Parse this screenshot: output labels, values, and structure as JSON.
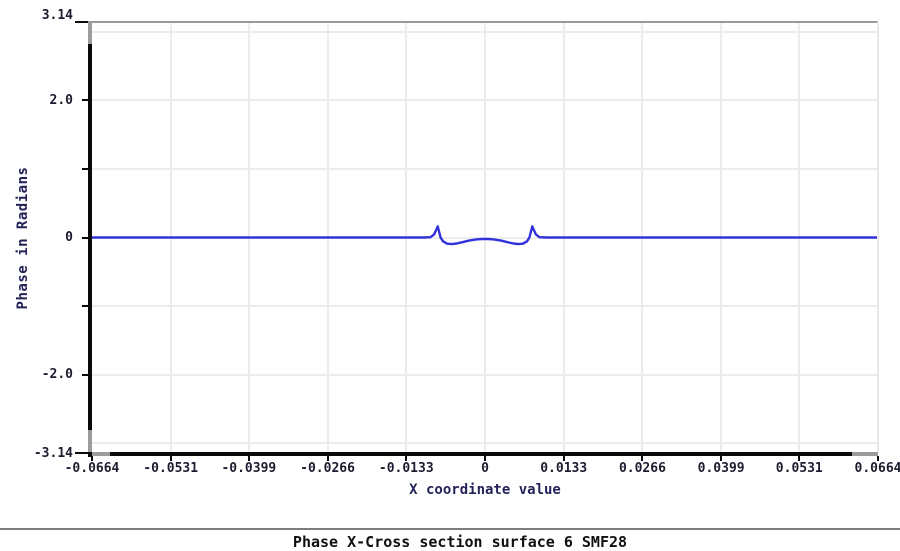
{
  "colors": {
    "background": "#ffffff",
    "line": "#3232dd",
    "grid": "#ececec",
    "axis": "#0a0a0a",
    "axis_shadow": "#9c9c9c",
    "border_top": "#9a9a9a",
    "border_right": "#e8e8e8",
    "tick_text": "#1c1c30",
    "axis_label_text": "#23235a",
    "title_text": "#101010",
    "footer_line": "#7d7d7d"
  },
  "chart_data": {
    "type": "line",
    "title": "Phase X-Cross section surface 6 SMF28",
    "xlabel": "X coordinate value",
    "ylabel": "Phase in Radians",
    "xlim": [
      -0.0664,
      0.0664
    ],
    "ylim": [
      -3.14,
      3.14
    ],
    "grid": true,
    "legend_position": "none",
    "x_ticks": [
      {
        "value": -0.0664,
        "label": "-0.0664"
      },
      {
        "value": -0.0531,
        "label": "-0.0531"
      },
      {
        "value": -0.0399,
        "label": "-0.0399"
      },
      {
        "value": -0.0266,
        "label": "-0.0266"
      },
      {
        "value": -0.0133,
        "label": "-0.0133"
      },
      {
        "value": 0,
        "label": "0"
      },
      {
        "value": 0.0133,
        "label": "0.0133"
      },
      {
        "value": 0.0266,
        "label": "0.0266"
      },
      {
        "value": 0.0399,
        "label": "0.0399"
      },
      {
        "value": 0.0531,
        "label": "0.0531"
      },
      {
        "value": 0.0664,
        "label": "0.0664"
      }
    ],
    "y_ticks": [
      {
        "value": 3.14,
        "label": "3.14",
        "long": true
      },
      {
        "value": 2,
        "label": "2.0",
        "long": false
      },
      {
        "value": 1,
        "label": "",
        "long": false
      },
      {
        "value": 0,
        "label": "0",
        "long": false
      },
      {
        "value": -1,
        "label": "",
        "long": false
      },
      {
        "value": -2,
        "label": "-2.0",
        "long": false
      },
      {
        "value": -3.14,
        "label": "-3.14",
        "long": true
      }
    ],
    "y_grid_values": [
      3,
      2,
      1,
      0,
      -1,
      -2,
      -3
    ],
    "series": [
      {
        "name": "Phase X-Cross section",
        "color": "#3232dd",
        "points": [
          [
            -0.0664,
            0
          ],
          [
            -0.03,
            0
          ],
          [
            -0.015,
            0
          ],
          [
            -0.0105,
            0
          ],
          [
            -0.0092,
            0.004
          ],
          [
            -0.0086,
            0.045
          ],
          [
            -0.0082,
            0.12
          ],
          [
            -0.008,
            0.162
          ],
          [
            -0.0078,
            0.1
          ],
          [
            -0.0075,
            0.0
          ],
          [
            -0.0071,
            -0.055
          ],
          [
            -0.0064,
            -0.09
          ],
          [
            -0.0056,
            -0.096
          ],
          [
            -0.0048,
            -0.088
          ],
          [
            -0.0038,
            -0.068
          ],
          [
            -0.0027,
            -0.045
          ],
          [
            -0.0015,
            -0.028
          ],
          [
            -0.0005,
            -0.022
          ],
          [
            0.0005,
            -0.022
          ],
          [
            0.0015,
            -0.028
          ],
          [
            0.0027,
            -0.045
          ],
          [
            0.0038,
            -0.068
          ],
          [
            0.0048,
            -0.088
          ],
          [
            0.0056,
            -0.096
          ],
          [
            0.0064,
            -0.09
          ],
          [
            0.0071,
            -0.055
          ],
          [
            0.0075,
            0.0
          ],
          [
            0.0078,
            0.1
          ],
          [
            0.008,
            0.162
          ],
          [
            0.0082,
            0.12
          ],
          [
            0.0086,
            0.045
          ],
          [
            0.0092,
            0.004
          ],
          [
            0.0105,
            0
          ],
          [
            0.015,
            0
          ],
          [
            0.03,
            0
          ],
          [
            0.0664,
            0
          ]
        ]
      }
    ]
  }
}
